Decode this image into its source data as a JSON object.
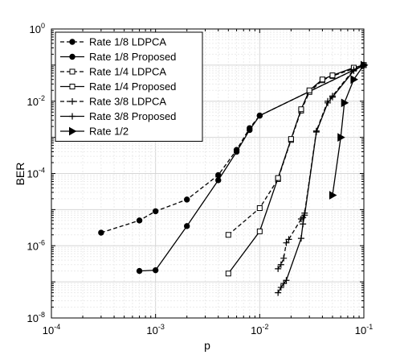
{
  "chart_data": {
    "type": "line",
    "xscale": "log",
    "yscale": "log",
    "xlabel": "p",
    "ylabel": "BER",
    "xlim": [
      0.0001,
      0.1
    ],
    "ylim": [
      1e-08,
      1
    ],
    "grid": true,
    "legend_position": "top-left",
    "x_ticks": [
      {
        "base": "10",
        "exp": "-4"
      },
      {
        "base": "10",
        "exp": "-3"
      },
      {
        "base": "10",
        "exp": "-2"
      },
      {
        "base": "10",
        "exp": "-1"
      }
    ],
    "y_ticks": [
      {
        "base": "10",
        "exp": "-8"
      },
      {
        "base": "10",
        "exp": "-6"
      },
      {
        "base": "10",
        "exp": "-4"
      },
      {
        "base": "10",
        "exp": "-2"
      },
      {
        "base": "10",
        "exp": "0"
      }
    ],
    "series": [
      {
        "name": "Rate 1/8 LDPCA",
        "marker": "circle",
        "fill": "filled",
        "dash": true,
        "x": [
          0.0003,
          0.0007,
          0.001,
          0.002,
          0.004,
          0.006,
          0.008,
          0.01,
          0.1
        ],
        "y": [
          2.3e-06,
          5e-06,
          9e-06,
          1.9e-05,
          9e-05,
          0.00045,
          0.0018,
          0.004,
          0.1
        ]
      },
      {
        "name": "Rate 1/8 Proposed",
        "marker": "circle",
        "fill": "filled",
        "dash": false,
        "x": [
          0.0007,
          0.001,
          0.002,
          0.004,
          0.006,
          0.008,
          0.01,
          0.1
        ],
        "y": [
          2e-07,
          2.1e-07,
          3.5e-06,
          6.5e-05,
          0.0004,
          0.0016,
          0.004,
          0.1
        ]
      },
      {
        "name": "Rate 1/4 LDPCA",
        "marker": "square",
        "fill": "open",
        "dash": true,
        "x": [
          0.005,
          0.01,
          0.015,
          0.02,
          0.025,
          0.03,
          0.04,
          0.05,
          0.08,
          0.1
        ],
        "y": [
          2e-06,
          1.1e-05,
          7e-05,
          0.00085,
          0.0055,
          0.018,
          0.038,
          0.05,
          0.08,
          0.1
        ]
      },
      {
        "name": "Rate 1/4 Proposed",
        "marker": "square",
        "fill": "open",
        "dash": false,
        "x": [
          0.005,
          0.01,
          0.015,
          0.02,
          0.025,
          0.03,
          0.04,
          0.05,
          0.08,
          0.1
        ],
        "y": [
          1.7e-07,
          2.5e-06,
          7.5e-05,
          0.0009,
          0.006,
          0.02,
          0.04,
          0.052,
          0.085,
          0.1
        ]
      },
      {
        "name": "Rate 3/8 LDPCA",
        "marker": "plus",
        "fill": "none",
        "dash": true,
        "x": [
          0.015,
          0.016,
          0.017,
          0.018,
          0.019,
          0.025,
          0.026,
          0.027,
          0.035,
          0.045,
          0.05,
          0.08,
          0.1
        ],
        "y": [
          2.3e-07,
          3e-07,
          4.5e-07,
          1.2e-06,
          1.5e-06,
          5.5e-06,
          6e-06,
          8e-06,
          0.0015,
          0.01,
          0.014,
          0.075,
          0.1
        ]
      },
      {
        "name": "Rate 3/8 Proposed",
        "marker": "plus",
        "fill": "none",
        "dash": false,
        "x": [
          0.015,
          0.016,
          0.017,
          0.018,
          0.025,
          0.026,
          0.027,
          0.035,
          0.045,
          0.05,
          0.08,
          0.1
        ],
        "y": [
          5e-08,
          7e-08,
          9e-08,
          1.1e-07,
          1.6e-06,
          4e-06,
          7e-06,
          0.0014,
          0.009,
          0.013,
          0.07,
          0.1
        ]
      },
      {
        "name": "Rate 1/2",
        "marker": "triangle-right",
        "fill": "filled",
        "dash": false,
        "x": [
          0.05,
          0.06,
          0.065,
          0.08,
          0.1
        ],
        "y": [
          2.5e-05,
          0.001,
          0.009,
          0.04,
          0.1
        ]
      }
    ]
  }
}
